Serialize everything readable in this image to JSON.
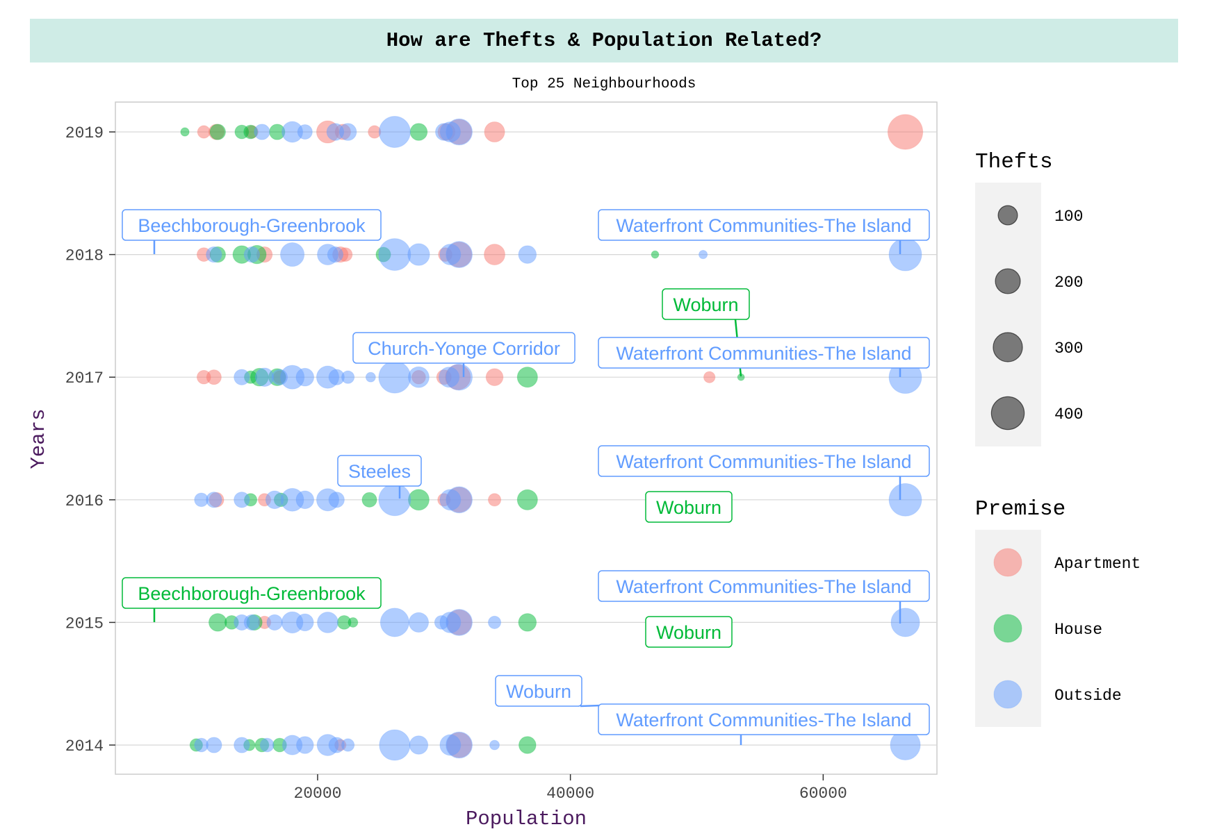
{
  "chart_data": {
    "type": "scatter",
    "title": "How are Thefts & Population Related?",
    "subtitle": "Top 25 Neighbourhoods",
    "xlabel": "Population",
    "ylabel": "Years",
    "xlim": [
      4000,
      69000
    ],
    "x_ticks": [
      20000,
      40000,
      60000
    ],
    "x_tick_labels": [
      "20000",
      "40000",
      "60000"
    ],
    "y_categories": [
      "2014",
      "2015",
      "2016",
      "2017",
      "2018",
      "2019"
    ],
    "grid": true,
    "legend_position": "right",
    "size_legend": {
      "title": "Thefts",
      "values": [
        100,
        200,
        300,
        400
      ],
      "labels": [
        "100",
        "200",
        "300",
        "400"
      ]
    },
    "color_legend": {
      "title": "Premise",
      "items": [
        {
          "label": "Apartment",
          "color": "#F8766D"
        },
        {
          "label": "House",
          "color": "#00BA38"
        },
        {
          "label": "Outside",
          "color": "#619CFF"
        }
      ]
    },
    "series": [
      {
        "name": "Apartment",
        "color": "#F8766D",
        "points": [
          {
            "x": 11000,
            "y": "2019",
            "t": 30
          },
          {
            "x": 12000,
            "y": "2019",
            "t": 60
          },
          {
            "x": 14800,
            "y": "2019",
            "t": 30
          },
          {
            "x": 20800,
            "y": "2019",
            "t": 170
          },
          {
            "x": 22000,
            "y": "2019",
            "t": 60
          },
          {
            "x": 24500,
            "y": "2019",
            "t": 30
          },
          {
            "x": 30200,
            "y": "2019",
            "t": 80
          },
          {
            "x": 31200,
            "y": "2019",
            "t": 230
          },
          {
            "x": 34000,
            "y": "2019",
            "t": 130
          },
          {
            "x": 66500,
            "y": "2019",
            "t": 520
          },
          {
            "x": 11000,
            "y": "2018",
            "t": 40
          },
          {
            "x": 15800,
            "y": "2018",
            "t": 60
          },
          {
            "x": 21800,
            "y": "2018",
            "t": 60
          },
          {
            "x": 22200,
            "y": "2018",
            "t": 40
          },
          {
            "x": 30100,
            "y": "2018",
            "t": 40
          },
          {
            "x": 31200,
            "y": "2018",
            "t": 230
          },
          {
            "x": 34000,
            "y": "2018",
            "t": 140
          },
          {
            "x": 11000,
            "y": "2017",
            "t": 40
          },
          {
            "x": 11800,
            "y": "2017",
            "t": 50
          },
          {
            "x": 17000,
            "y": "2017",
            "t": 30
          },
          {
            "x": 28000,
            "y": "2017",
            "t": 40
          },
          {
            "x": 30000,
            "y": "2017",
            "t": 50
          },
          {
            "x": 31100,
            "y": "2017",
            "t": 230
          },
          {
            "x": 34000,
            "y": "2017",
            "t": 80
          },
          {
            "x": 51000,
            "y": "2017",
            "t": 20
          },
          {
            "x": 12000,
            "y": "2016",
            "t": 50
          },
          {
            "x": 15800,
            "y": "2016",
            "t": 30
          },
          {
            "x": 30000,
            "y": "2016",
            "t": 30
          },
          {
            "x": 31200,
            "y": "2016",
            "t": 230
          },
          {
            "x": 34000,
            "y": "2016",
            "t": 30
          },
          {
            "x": 15800,
            "y": "2015",
            "t": 30
          },
          {
            "x": 31200,
            "y": "2015",
            "t": 230
          },
          {
            "x": 21800,
            "y": "2014",
            "t": 20
          },
          {
            "x": 31200,
            "y": "2014",
            "t": 230
          }
        ]
      },
      {
        "name": "House",
        "color": "#00BA38",
        "points": [
          {
            "x": 9500,
            "y": "2019",
            "t": 5
          },
          {
            "x": 12100,
            "y": "2019",
            "t": 60
          },
          {
            "x": 14000,
            "y": "2019",
            "t": 40
          },
          {
            "x": 14700,
            "y": "2019",
            "t": 40
          },
          {
            "x": 16800,
            "y": "2019",
            "t": 60
          },
          {
            "x": 28000,
            "y": "2019",
            "t": 80
          },
          {
            "x": 12100,
            "y": "2018",
            "t": 60
          },
          {
            "x": 14000,
            "y": "2018",
            "t": 90
          },
          {
            "x": 15200,
            "y": "2018",
            "t": 100
          },
          {
            "x": 25200,
            "y": "2018",
            "t": 50
          },
          {
            "x": 46700,
            "y": "2018",
            "t": 2
          },
          {
            "x": 14700,
            "y": "2017",
            "t": 30
          },
          {
            "x": 15400,
            "y": "2017",
            "t": 90
          },
          {
            "x": 16800,
            "y": "2017",
            "t": 80
          },
          {
            "x": 36600,
            "y": "2017",
            "t": 130
          },
          {
            "x": 53500,
            "y": "2017",
            "t": 1
          },
          {
            "x": 14700,
            "y": "2016",
            "t": 30
          },
          {
            "x": 17100,
            "y": "2016",
            "t": 40
          },
          {
            "x": 24100,
            "y": "2016",
            "t": 50
          },
          {
            "x": 28000,
            "y": "2016",
            "t": 140
          },
          {
            "x": 36600,
            "y": "2016",
            "t": 130
          },
          {
            "x": 12100,
            "y": "2015",
            "t": 90
          },
          {
            "x": 13200,
            "y": "2015",
            "t": 40
          },
          {
            "x": 15000,
            "y": "2015",
            "t": 60
          },
          {
            "x": 22100,
            "y": "2015",
            "t": 40
          },
          {
            "x": 22800,
            "y": "2015",
            "t": 10
          },
          {
            "x": 36600,
            "y": "2015",
            "t": 90
          },
          {
            "x": 10400,
            "y": "2014",
            "t": 30
          },
          {
            "x": 14600,
            "y": "2014",
            "t": 20
          },
          {
            "x": 15600,
            "y": "2014",
            "t": 40
          },
          {
            "x": 17000,
            "y": "2014",
            "t": 40
          },
          {
            "x": 36600,
            "y": "2014",
            "t": 80
          }
        ]
      },
      {
        "name": "Outside",
        "color": "#619CFF",
        "points": [
          {
            "x": 15600,
            "y": "2019",
            "t": 60
          },
          {
            "x": 18000,
            "y": "2019",
            "t": 140
          },
          {
            "x": 19000,
            "y": "2019",
            "t": 50
          },
          {
            "x": 21400,
            "y": "2019",
            "t": 80
          },
          {
            "x": 22400,
            "y": "2019",
            "t": 80
          },
          {
            "x": 26100,
            "y": "2019",
            "t": 400
          },
          {
            "x": 30000,
            "y": "2019",
            "t": 80
          },
          {
            "x": 30500,
            "y": "2019",
            "t": 130
          },
          {
            "x": 31200,
            "y": "2019",
            "t": 260
          },
          {
            "x": 11800,
            "y": "2018",
            "t": 60
          },
          {
            "x": 14800,
            "y": "2018",
            "t": 60
          },
          {
            "x": 18000,
            "y": "2018",
            "t": 200
          },
          {
            "x": 20800,
            "y": "2018",
            "t": 140
          },
          {
            "x": 21400,
            "y": "2018",
            "t": 60
          },
          {
            "x": 26100,
            "y": "2018",
            "t": 420
          },
          {
            "x": 28000,
            "y": "2018",
            "t": 160
          },
          {
            "x": 30500,
            "y": "2018",
            "t": 140
          },
          {
            "x": 31200,
            "y": "2018",
            "t": 260
          },
          {
            "x": 36600,
            "y": "2018",
            "t": 90
          },
          {
            "x": 50500,
            "y": "2018",
            "t": 5
          },
          {
            "x": 66500,
            "y": "2018",
            "t": 440
          },
          {
            "x": 14000,
            "y": "2017",
            "t": 60
          },
          {
            "x": 15800,
            "y": "2017",
            "t": 100
          },
          {
            "x": 17000,
            "y": "2017",
            "t": 60
          },
          {
            "x": 18000,
            "y": "2017",
            "t": 200
          },
          {
            "x": 19000,
            "y": "2017",
            "t": 90
          },
          {
            "x": 20800,
            "y": "2017",
            "t": 170
          },
          {
            "x": 21500,
            "y": "2017",
            "t": 60
          },
          {
            "x": 22400,
            "y": "2017",
            "t": 30
          },
          {
            "x": 24200,
            "y": "2017",
            "t": 10
          },
          {
            "x": 26100,
            "y": "2017",
            "t": 420
          },
          {
            "x": 28000,
            "y": "2017",
            "t": 140
          },
          {
            "x": 30400,
            "y": "2017",
            "t": 130
          },
          {
            "x": 31200,
            "y": "2017",
            "t": 260
          },
          {
            "x": 66500,
            "y": "2017",
            "t": 440
          },
          {
            "x": 10800,
            "y": "2016",
            "t": 40
          },
          {
            "x": 11800,
            "y": "2016",
            "t": 60
          },
          {
            "x": 14000,
            "y": "2016",
            "t": 60
          },
          {
            "x": 16600,
            "y": "2016",
            "t": 90
          },
          {
            "x": 18000,
            "y": "2016",
            "t": 180
          },
          {
            "x": 19000,
            "y": "2016",
            "t": 90
          },
          {
            "x": 20800,
            "y": "2016",
            "t": 170
          },
          {
            "x": 21500,
            "y": "2016",
            "t": 60
          },
          {
            "x": 26100,
            "y": "2016",
            "t": 420
          },
          {
            "x": 30500,
            "y": "2016",
            "t": 140
          },
          {
            "x": 31200,
            "y": "2016",
            "t": 260
          },
          {
            "x": 66500,
            "y": "2016",
            "t": 440
          },
          {
            "x": 14000,
            "y": "2015",
            "t": 60
          },
          {
            "x": 14800,
            "y": "2015",
            "t": 60
          },
          {
            "x": 16600,
            "y": "2015",
            "t": 60
          },
          {
            "x": 18000,
            "y": "2015",
            "t": 150
          },
          {
            "x": 19000,
            "y": "2015",
            "t": 80
          },
          {
            "x": 20800,
            "y": "2015",
            "t": 140
          },
          {
            "x": 26100,
            "y": "2015",
            "t": 320
          },
          {
            "x": 28000,
            "y": "2015",
            "t": 120
          },
          {
            "x": 29800,
            "y": "2015",
            "t": 40
          },
          {
            "x": 30500,
            "y": "2015",
            "t": 140
          },
          {
            "x": 31200,
            "y": "2015",
            "t": 260
          },
          {
            "x": 34000,
            "y": "2015",
            "t": 30
          },
          {
            "x": 66500,
            "y": "2015",
            "t": 320
          },
          {
            "x": 10800,
            "y": "2014",
            "t": 40
          },
          {
            "x": 11800,
            "y": "2014",
            "t": 60
          },
          {
            "x": 14000,
            "y": "2014",
            "t": 60
          },
          {
            "x": 16000,
            "y": "2014",
            "t": 40
          },
          {
            "x": 18000,
            "y": "2014",
            "t": 120
          },
          {
            "x": 19000,
            "y": "2014",
            "t": 80
          },
          {
            "x": 20800,
            "y": "2014",
            "t": 150
          },
          {
            "x": 21500,
            "y": "2014",
            "t": 60
          },
          {
            "x": 22400,
            "y": "2014",
            "t": 30
          },
          {
            "x": 26100,
            "y": "2014",
            "t": 380
          },
          {
            "x": 28000,
            "y": "2014",
            "t": 100
          },
          {
            "x": 30500,
            "y": "2014",
            "t": 140
          },
          {
            "x": 31200,
            "y": "2014",
            "t": 260
          },
          {
            "x": 34000,
            "y": "2014",
            "t": 10
          },
          {
            "x": 66500,
            "y": "2014",
            "t": 360
          }
        ]
      }
    ],
    "annotations": [
      {
        "text": "Beechborough-Greenbrook",
        "premise": "Outside",
        "year": "2018",
        "x": 6500
      },
      {
        "text": "Waterfront Communities-The Island",
        "premise": "Outside",
        "year": "2018",
        "x": 66500
      },
      {
        "text": "Woburn",
        "premise": "House",
        "year": "2017",
        "x": 53500
      },
      {
        "text": "Church-Yonge Corridor",
        "premise": "Outside",
        "year": "2017",
        "x": 31200
      },
      {
        "text": "Waterfront Communities-The Island",
        "premise": "Outside",
        "year": "2017",
        "x": 66500
      },
      {
        "text": "Steeles",
        "premise": "Outside",
        "year": "2016",
        "x": 26100
      },
      {
        "text": "Waterfront Communities-The Island",
        "premise": "Outside",
        "year": "2016",
        "x": 66500
      },
      {
        "text": "Woburn",
        "premise": "House",
        "year": "2016",
        "x": 53500
      },
      {
        "text": "Beechborough-Greenbrook",
        "premise": "House",
        "year": "2015",
        "x": 6500
      },
      {
        "text": "Waterfront Communities-The Island",
        "premise": "Outside",
        "year": "2015",
        "x": 66500
      },
      {
        "text": "Woburn",
        "premise": "House",
        "year": "2015",
        "x": 53500
      },
      {
        "text": "Woburn",
        "premise": "Outside",
        "year": "2014",
        "x": 53500
      },
      {
        "text": "Waterfront Communities-The Island",
        "premise": "Outside",
        "year": "2014",
        "x": 66500
      }
    ]
  }
}
